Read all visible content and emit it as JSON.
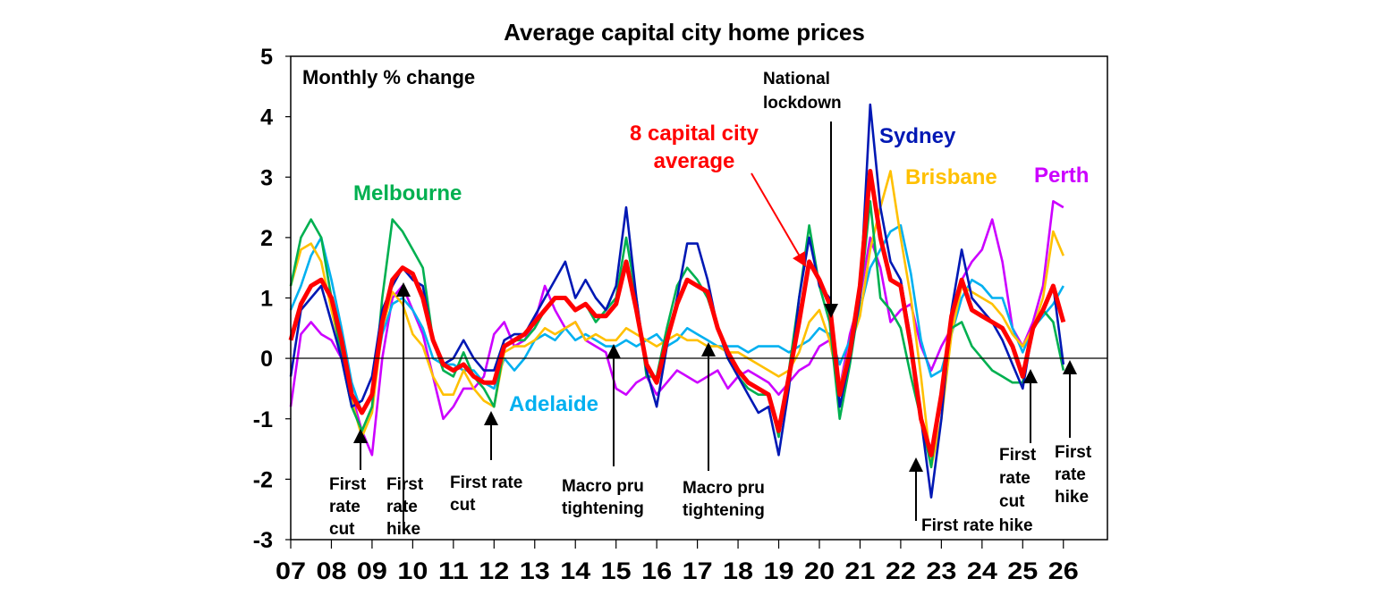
{
  "chart_data": {
    "type": "line",
    "title": "Average capital city home prices",
    "ylabel": "Monthly % change",
    "xlabel": "",
    "ylim": [
      -3,
      5
    ],
    "yticks": [
      "5",
      "4",
      "3",
      "2",
      "1",
      "0",
      "-1",
      "-2",
      "-3"
    ],
    "xlim": [
      "2007-01",
      "2027-02"
    ],
    "xtick_labels": [
      "07",
      "08",
      "09",
      "10",
      "11",
      "12",
      "13",
      "14",
      "15",
      "16",
      "17",
      "18",
      "19",
      "20",
      "21",
      "22",
      "23",
      "24",
      "25",
      "26"
    ],
    "grid": false,
    "legend": "none (direct labels)",
    "x": [
      "2007-01",
      "2007-04",
      "2007-07",
      "2007-10",
      "2008-01",
      "2008-04",
      "2008-07",
      "2008-10",
      "2009-01",
      "2009-04",
      "2009-07",
      "2009-10",
      "2010-01",
      "2010-04",
      "2010-07",
      "2010-10",
      "2011-01",
      "2011-04",
      "2011-07",
      "2011-10",
      "2012-01",
      "2012-04",
      "2012-07",
      "2012-10",
      "2013-01",
      "2013-04",
      "2013-07",
      "2013-10",
      "2014-01",
      "2014-04",
      "2014-07",
      "2014-10",
      "2015-01",
      "2015-04",
      "2015-07",
      "2015-10",
      "2016-01",
      "2016-04",
      "2016-07",
      "2016-10",
      "2017-01",
      "2017-04",
      "2017-07",
      "2017-10",
      "2018-01",
      "2018-04",
      "2018-07",
      "2018-10",
      "2019-01",
      "2019-04",
      "2019-07",
      "2019-10",
      "2020-01",
      "2020-04",
      "2020-07",
      "2020-10",
      "2021-01",
      "2021-04",
      "2021-07",
      "2021-10",
      "2022-01",
      "2022-04",
      "2022-07",
      "2022-10",
      "2023-01",
      "2023-04",
      "2023-07",
      "2023-10",
      "2024-01",
      "2024-04",
      "2024-07",
      "2024-10",
      "2025-01",
      "2025-04",
      "2025-07",
      "2025-10",
      "2026-01"
    ],
    "series": [
      {
        "name": "Perth",
        "color": "#CC00FF",
        "values": [
          -0.8,
          0.4,
          0.6,
          0.4,
          0.3,
          0.0,
          -0.6,
          -1.2,
          -1.6,
          0.0,
          1.0,
          1.2,
          0.8,
          0.4,
          -0.3,
          -1.0,
          -0.8,
          -0.5,
          -0.5,
          -0.3,
          0.4,
          0.6,
          0.2,
          0.3,
          0.6,
          1.2,
          0.8,
          0.5,
          0.6,
          0.3,
          0.2,
          0.1,
          -0.5,
          -0.6,
          -0.4,
          -0.3,
          -0.6,
          -0.4,
          -0.2,
          -0.3,
          -0.4,
          -0.3,
          -0.2,
          -0.5,
          -0.3,
          -0.2,
          -0.3,
          -0.4,
          -0.6,
          -0.4,
          -0.2,
          -0.1,
          0.2,
          0.3,
          -0.5,
          0.4,
          1.0,
          2.0,
          1.5,
          0.6,
          0.8,
          0.9,
          0.2,
          -0.2,
          0.2,
          0.5,
          1.3,
          1.6,
          1.8,
          2.3,
          1.6,
          0.5,
          0.2,
          0.6,
          1.2,
          2.6,
          2.5
        ]
      },
      {
        "name": "Adelaide",
        "color": "#00B0F0",
        "values": [
          0.8,
          1.2,
          1.7,
          2.0,
          1.3,
          0.5,
          -0.4,
          -0.9,
          -0.6,
          0.4,
          0.9,
          1.0,
          0.8,
          0.5,
          0.0,
          -0.1,
          -0.1,
          -0.2,
          -0.2,
          -0.4,
          -0.5,
          0.0,
          -0.2,
          0.0,
          0.3,
          0.4,
          0.3,
          0.5,
          0.3,
          0.4,
          0.3,
          0.2,
          0.2,
          0.3,
          0.2,
          0.3,
          0.4,
          0.2,
          0.3,
          0.5,
          0.4,
          0.3,
          0.2,
          0.2,
          0.2,
          0.1,
          0.2,
          0.2,
          0.2,
          0.1,
          0.2,
          0.3,
          0.5,
          0.4,
          -0.1,
          0.3,
          0.8,
          1.5,
          1.8,
          2.1,
          2.2,
          1.4,
          0.3,
          -0.3,
          -0.2,
          0.4,
          1.0,
          1.3,
          1.2,
          1.0,
          1.0,
          0.5,
          0.1,
          0.5,
          0.7,
          0.9,
          1.2
        ]
      },
      {
        "name": "Brisbane",
        "color": "#FFC000",
        "values": [
          1.2,
          1.8,
          1.9,
          1.6,
          0.8,
          0.1,
          -0.7,
          -1.3,
          -0.9,
          0.5,
          1.1,
          0.9,
          0.4,
          0.2,
          -0.3,
          -0.6,
          -0.6,
          -0.2,
          -0.5,
          -0.7,
          -0.8,
          0.1,
          0.2,
          0.2,
          0.3,
          0.5,
          0.4,
          0.5,
          0.6,
          0.3,
          0.4,
          0.3,
          0.3,
          0.5,
          0.4,
          0.3,
          0.2,
          0.3,
          0.4,
          0.3,
          0.3,
          0.2,
          0.2,
          0.1,
          0.1,
          0.0,
          -0.1,
          -0.2,
          -0.3,
          -0.2,
          0.1,
          0.6,
          0.8,
          0.3,
          -0.5,
          0.2,
          0.7,
          1.8,
          2.5,
          3.1,
          2.0,
          1.0,
          -0.3,
          -1.8,
          -1.0,
          0.4,
          1.2,
          1.1,
          1.0,
          0.9,
          0.7,
          0.4,
          0.2,
          0.5,
          1.0,
          2.1,
          1.7
        ]
      },
      {
        "name": "Melbourne",
        "color": "#00B050",
        "values": [
          1.2,
          2.0,
          2.3,
          2.0,
          1.0,
          0.0,
          -0.8,
          -1.2,
          -0.8,
          1.0,
          2.3,
          2.1,
          1.8,
          1.5,
          0.3,
          -0.2,
          -0.3,
          0.1,
          -0.3,
          -0.5,
          -0.8,
          0.2,
          0.3,
          0.3,
          0.5,
          0.8,
          1.0,
          1.0,
          0.8,
          0.9,
          0.6,
          0.8,
          1.0,
          2.0,
          1.0,
          -0.3,
          -0.3,
          0.5,
          1.2,
          1.5,
          1.3,
          1.0,
          0.5,
          0.0,
          -0.3,
          -0.5,
          -0.6,
          -0.6,
          -1.3,
          -0.2,
          1.0,
          2.2,
          1.2,
          0.6,
          -1.0,
          -0.1,
          1.0,
          2.6,
          1.0,
          0.8,
          0.5,
          -0.3,
          -1.0,
          -1.8,
          -0.5,
          0.5,
          0.6,
          0.2,
          0.0,
          -0.2,
          -0.3,
          -0.4,
          -0.4,
          0.5,
          0.8,
          0.6,
          -0.2
        ]
      },
      {
        "name": "Sydney",
        "color": "#0018B4",
        "values": [
          -0.3,
          0.8,
          1.0,
          1.2,
          0.6,
          0.0,
          -0.8,
          -0.7,
          -0.3,
          0.8,
          1.2,
          1.5,
          1.3,
          1.2,
          0.3,
          -0.1,
          0.0,
          0.3,
          0.0,
          -0.2,
          -0.2,
          0.3,
          0.4,
          0.4,
          0.7,
          1.0,
          1.3,
          1.6,
          1.0,
          1.3,
          1.0,
          0.8,
          1.2,
          2.5,
          1.0,
          -0.2,
          -0.8,
          0.2,
          1.0,
          1.9,
          1.9,
          1.3,
          0.5,
          0.0,
          -0.3,
          -0.6,
          -0.9,
          -0.8,
          -1.6,
          -0.5,
          1.0,
          2.0,
          1.2,
          1.0,
          -0.8,
          0.0,
          1.0,
          4.2,
          2.5,
          1.6,
          1.3,
          0.3,
          -1.0,
          -2.3,
          -1.0,
          0.8,
          1.8,
          1.0,
          0.8,
          0.6,
          0.3,
          -0.1,
          -0.5,
          0.5,
          0.8,
          1.2,
          -0.1
        ]
      },
      {
        "name": "8 capital city average",
        "color": "#FF0000",
        "values": [
          0.3,
          0.9,
          1.2,
          1.3,
          1.0,
          0.3,
          -0.6,
          -0.9,
          -0.6,
          0.6,
          1.3,
          1.5,
          1.4,
          1.0,
          0.3,
          -0.1,
          -0.2,
          -0.1,
          -0.3,
          -0.4,
          -0.4,
          0.2,
          0.3,
          0.4,
          0.6,
          0.8,
          1.0,
          1.0,
          0.8,
          0.9,
          0.7,
          0.7,
          0.9,
          1.6,
          0.8,
          -0.1,
          -0.4,
          0.3,
          0.9,
          1.3,
          1.2,
          1.1,
          0.5,
          0.1,
          -0.2,
          -0.4,
          -0.5,
          -0.6,
          -1.2,
          -0.3,
          0.6,
          1.6,
          1.3,
          0.9,
          -0.6,
          0.1,
          1.2,
          3.1,
          2.0,
          1.3,
          1.2,
          0.2,
          -1.0,
          -1.6,
          -0.6,
          0.7,
          1.3,
          0.8,
          0.7,
          0.6,
          0.5,
          0.2,
          -0.3,
          0.5,
          0.8,
          1.2,
          0.6
        ]
      }
    ],
    "annotations": {
      "ylabel_text": "Monthly % change",
      "melbourne": "Melbourne",
      "adelaide": "Adelaide",
      "average": [
        "8 capital city",
        "average"
      ],
      "lockdown": [
        "National",
        "lockdown"
      ],
      "sydney": "Sydney",
      "brisbane": "Brisbane",
      "perth": "Perth",
      "cut_2008": [
        "First",
        "rate",
        "cut"
      ],
      "hike_2009": [
        "First",
        "rate",
        "hike"
      ],
      "cut_2011": [
        "First rate",
        "cut"
      ],
      "macro_2014": [
        "Macro pru",
        "tightening"
      ],
      "macro_2017": [
        "Macro pru",
        "tightening"
      ],
      "hike_2022": "First rate hike",
      "cut_2025": [
        "First",
        "rate",
        "cut"
      ],
      "hike_2025": [
        "First",
        "rate",
        "hike"
      ]
    }
  }
}
